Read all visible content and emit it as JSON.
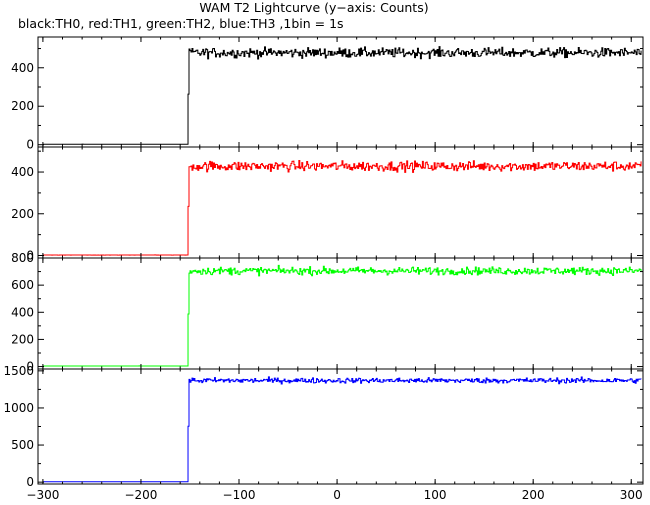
{
  "title": "WAM T2 Lightcurve (y−axis: Counts)",
  "subtitle": "black:TH0, red:TH1, green:TH2, blue:TH3 ,1bin = 1s",
  "colors": {
    "TH0": "#000000",
    "TH1": "#ff0000",
    "TH2": "#00ff00",
    "TH3": "#0000ff",
    "axes": "#000000",
    "background": "#ffffff"
  },
  "chart_data": [
    {
      "type": "line",
      "series": [
        {
          "name": "TH0",
          "color": "#000000",
          "x_start": -300,
          "x_end": 310,
          "step_time": -152,
          "baseline": 2,
          "level": 478,
          "noise": 18
        }
      ],
      "xlim": [
        -305,
        312
      ],
      "ylim": [
        -12,
        560
      ],
      "xticks": [
        -300,
        -200,
        -100,
        0,
        100,
        200,
        300
      ],
      "yticks": [
        0,
        200,
        400
      ],
      "yticklabels": [
        "0",
        "200",
        "400"
      ],
      "grid": false
    },
    {
      "type": "line",
      "series": [
        {
          "name": "TH1",
          "color": "#ff0000",
          "x_start": -300,
          "x_end": 310,
          "step_time": -152,
          "baseline": 2,
          "level": 428,
          "noise": 17
        }
      ],
      "xlim": [
        -305,
        312
      ],
      "ylim": [
        -12,
        520
      ],
      "xticks": [
        -300,
        -200,
        -100,
        0,
        100,
        200,
        300
      ],
      "yticks": [
        0,
        200,
        400
      ],
      "yticklabels": [
        "0",
        "200",
        "400"
      ],
      "grid": false
    },
    {
      "type": "line",
      "series": [
        {
          "name": "TH2",
          "color": "#00ff00",
          "x_start": -300,
          "x_end": 310,
          "step_time": -152,
          "baseline": 4,
          "level": 705,
          "noise": 20
        }
      ],
      "xlim": [
        -305,
        312
      ],
      "ylim": [
        -18,
        800
      ],
      "xticks": [
        -300,
        -200,
        -100,
        0,
        100,
        200,
        300
      ],
      "yticks": [
        0,
        200,
        400,
        600,
        800
      ],
      "yticklabels": [
        "0",
        "200",
        "400",
        "600",
        "800"
      ],
      "grid": false
    },
    {
      "type": "line",
      "series": [
        {
          "name": "TH3",
          "color": "#0000ff",
          "x_start": -300,
          "x_end": 310,
          "step_time": -152,
          "baseline": 5,
          "level": 1370,
          "noise": 25
        }
      ],
      "xlim": [
        -305,
        312
      ],
      "ylim": [
        -25,
        1525
      ],
      "xticks": [
        -300,
        -200,
        -100,
        0,
        100,
        200,
        300
      ],
      "xticklabels": [
        "−300",
        "−200",
        "−100",
        "0",
        "100",
        "200",
        "300"
      ],
      "yticks": [
        0,
        500,
        1000,
        1500
      ],
      "yticklabels": [
        "0",
        "500",
        "1000",
        "1500"
      ],
      "grid": false
    }
  ]
}
